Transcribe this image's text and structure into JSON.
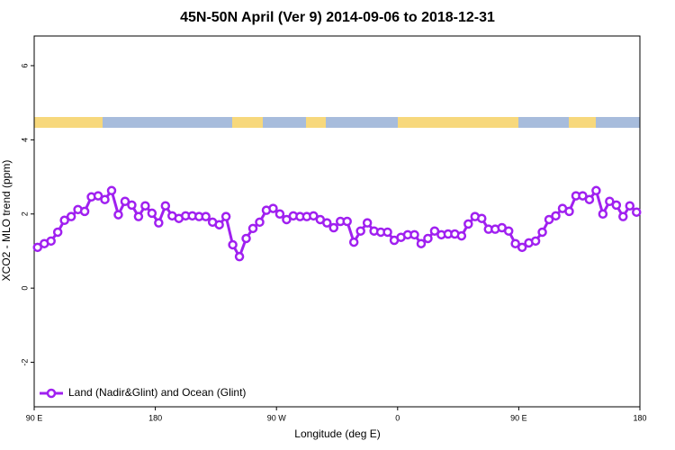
{
  "chart_data": {
    "type": "line",
    "title": "45N-50N April (Ver 9)   2014-09-06 to 2018-12-31",
    "xlabel": "Longitude (deg E)",
    "ylabel": "XCO2 - MLO trend (ppm)",
    "xlim": [
      90,
      540
    ],
    "ylim": [
      -3.2,
      6.8
    ],
    "xticks": [
      {
        "value": 90,
        "label": "90 E"
      },
      180,
      {
        "value": 270,
        "label": "90 W"
      },
      {
        "value": 360,
        "label": "0"
      },
      {
        "value": 450,
        "label": "90 E"
      },
      {
        "value": 540,
        "label": "180"
      }
    ],
    "yticks": [
      -2,
      0,
      2,
      4,
      6
    ],
    "legend": "lower left",
    "x": [
      92.5,
      97.5,
      102.5,
      107.5,
      112.5,
      117.5,
      122.5,
      127.5,
      132.5,
      137.5,
      142.5,
      147.5,
      152.5,
      157.5,
      162.5,
      167.5,
      172.5,
      177.5,
      182.5,
      187.5,
      192.5,
      197.5,
      202.5,
      207.5,
      212.5,
      217.5,
      222.5,
      227.5,
      232.5,
      237.5,
      242.5,
      247.5,
      252.5,
      257.5,
      262.5,
      267.5,
      272.5,
      277.5,
      282.5,
      287.5,
      292.5,
      297.5,
      302.5,
      307.5,
      312.5,
      317.5,
      322.5,
      327.5,
      332.5,
      337.5,
      342.5,
      347.5,
      352.5,
      357.5,
      362.5,
      367.5,
      372.5,
      377.5,
      382.5,
      387.5,
      392.5,
      397.5,
      402.5,
      407.5,
      412.5,
      417.5,
      422.5,
      427.5,
      432.5,
      437.5,
      442.5,
      447.5,
      452.5,
      457.5,
      462.5,
      467.5,
      472.5,
      477.5,
      482.5,
      487.5,
      492.5,
      497.5,
      502.5,
      507.5,
      512.5,
      517.5,
      522.5,
      527.5,
      532.5,
      537.5
    ],
    "series": [
      {
        "name": "Land (Nadir&Glint) and Ocean (Glint)",
        "color": "#a020f0",
        "values": [
          1.1,
          1.2,
          1.27,
          1.51,
          1.83,
          1.93,
          2.12,
          2.07,
          2.46,
          2.49,
          2.39,
          2.63,
          1.98,
          2.34,
          2.24,
          1.93,
          2.22,
          2.02,
          1.76,
          2.22,
          1.95,
          1.88,
          1.95,
          1.95,
          1.93,
          1.93,
          1.78,
          1.71,
          1.93,
          1.17,
          0.85,
          1.34,
          1.61,
          1.78,
          2.1,
          2.15,
          2.0,
          1.85,
          1.95,
          1.93,
          1.93,
          1.95,
          1.85,
          1.76,
          1.63,
          1.8,
          1.8,
          1.24,
          1.54,
          1.76,
          1.54,
          1.51,
          1.51,
          1.29,
          1.37,
          1.44,
          1.44,
          1.2,
          1.34,
          1.54,
          1.44,
          1.46,
          1.46,
          1.41,
          1.73,
          1.93,
          1.88,
          1.59,
          1.59,
          1.63,
          1.54,
          1.2,
          1.1,
          1.22,
          1.27,
          1.51,
          1.85,
          1.95,
          2.15,
          2.07,
          2.49,
          2.49,
          2.39,
          2.63,
          2.0,
          2.34,
          2.24,
          1.93,
          2.22,
          2.05
        ]
      }
    ]
  }
}
